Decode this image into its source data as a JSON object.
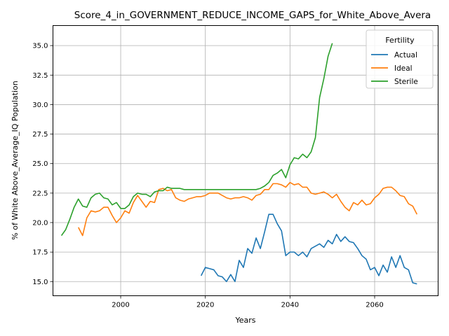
{
  "chart_data": {
    "type": "line",
    "title": "Score_4_in_GOVERNMENT_REDUCE_INCOME_GAPS_for_White_Above_Avera",
    "xlabel": "Years",
    "ylabel": "% of White Above_Average_IQ Population",
    "xlim": [
      1984,
      2075
    ],
    "ylim": [
      13.8,
      36.7
    ],
    "xticks": [
      2000,
      2020,
      2040,
      2060
    ],
    "yticks": [
      15.0,
      17.5,
      20.0,
      22.5,
      25.0,
      27.5,
      30.0,
      32.5,
      35.0
    ],
    "grid": true,
    "legend": {
      "title": "Fertility",
      "placement": "top-right"
    },
    "series": [
      {
        "name": "Actual",
        "color": "#1f77b4",
        "x": [
          2019,
          2020,
          2021,
          2022,
          2023,
          2024,
          2025,
          2026,
          2027,
          2028,
          2029,
          2030,
          2031,
          2032,
          2033,
          2034,
          2035,
          2036,
          2037,
          2038,
          2039,
          2040,
          2041,
          2042,
          2043,
          2044,
          2045,
          2046,
          2047,
          2048,
          2049,
          2050,
          2051,
          2052,
          2053,
          2054,
          2055,
          2056,
          2057,
          2058,
          2059,
          2060,
          2061,
          2062,
          2063,
          2064,
          2065,
          2066,
          2067,
          2068,
          2069,
          2070
        ],
        "y": [
          15.5,
          16.2,
          16.1,
          16.0,
          15.5,
          15.4,
          15.0,
          15.6,
          15.0,
          16.8,
          16.2,
          17.8,
          17.4,
          18.7,
          17.8,
          19.2,
          20.7,
          20.7,
          19.9,
          19.3,
          17.2,
          17.5,
          17.5,
          17.2,
          17.5,
          17.1,
          17.8,
          18.0,
          18.2,
          17.9,
          18.5,
          18.2,
          19.0,
          18.4,
          18.8,
          18.4,
          18.3,
          17.8,
          17.2,
          16.9,
          16.0,
          16.2,
          15.5,
          16.4,
          15.8,
          17.1,
          16.2,
          17.2,
          16.2,
          16.0,
          14.9,
          14.8
        ]
      },
      {
        "name": "Ideal",
        "color": "#ff7f0e",
        "x": [
          1990,
          1991,
          1992,
          1993,
          1994,
          1995,
          1996,
          1997,
          1998,
          1999,
          2000,
          2001,
          2002,
          2003,
          2004,
          2005,
          2006,
          2007,
          2008,
          2009,
          2010,
          2011,
          2012,
          2013,
          2014,
          2015,
          2016,
          2017,
          2018,
          2019,
          2020,
          2021,
          2022,
          2023,
          2024,
          2025,
          2026,
          2027,
          2028,
          2029,
          2030,
          2031,
          2032,
          2033,
          2034,
          2035,
          2036,
          2037,
          2038,
          2039,
          2040,
          2041,
          2042,
          2043,
          2044,
          2045,
          2046,
          2047,
          2048,
          2049,
          2050,
          2051,
          2052,
          2053,
          2054,
          2055,
          2056,
          2057,
          2058,
          2059,
          2060,
          2061,
          2062,
          2063,
          2064,
          2065,
          2066,
          2067,
          2068,
          2069,
          2070
        ],
        "y": [
          19.6,
          18.9,
          20.4,
          21.0,
          20.9,
          21.0,
          21.3,
          21.3,
          20.6,
          20.0,
          20.4,
          21.0,
          20.8,
          21.7,
          22.3,
          21.8,
          21.3,
          21.8,
          21.7,
          22.8,
          22.9,
          22.7,
          22.8,
          22.1,
          21.9,
          21.8,
          22.0,
          22.1,
          22.2,
          22.2,
          22.3,
          22.5,
          22.5,
          22.5,
          22.3,
          22.1,
          22.0,
          22.1,
          22.1,
          22.2,
          22.1,
          21.9,
          22.3,
          22.4,
          22.8,
          22.8,
          23.3,
          23.3,
          23.2,
          23.0,
          23.4,
          23.2,
          23.3,
          23.0,
          23.0,
          22.5,
          22.4,
          22.5,
          22.6,
          22.4,
          22.1,
          22.4,
          21.8,
          21.3,
          21.0,
          21.7,
          21.5,
          21.9,
          21.5,
          21.6,
          22.1,
          22.4,
          22.9,
          23.0,
          23.0,
          22.7,
          22.3,
          22.2,
          21.6,
          21.4,
          20.7
        ]
      },
      {
        "name": "Sterile",
        "color": "#2ca02c",
        "x": [
          1986,
          1987,
          1988,
          1989,
          1990,
          1991,
          1992,
          1993,
          1994,
          1995,
          1996,
          1997,
          1998,
          1999,
          2000,
          2001,
          2002,
          2003,
          2004,
          2005,
          2006,
          2007,
          2008,
          2009,
          2010,
          2011,
          2012,
          2013,
          2014,
          2015,
          2016,
          2017,
          2018,
          2019,
          2020,
          2021,
          2022,
          2023,
          2024,
          2025,
          2026,
          2027,
          2028,
          2029,
          2030,
          2031,
          2032,
          2033,
          2034,
          2035,
          2036,
          2037,
          2038,
          2039,
          2040,
          2041,
          2042,
          2043,
          2044,
          2045,
          2046,
          2047,
          2048,
          2049,
          2050
        ],
        "y": [
          18.9,
          19.4,
          20.3,
          21.3,
          22.0,
          21.4,
          21.3,
          22.1,
          22.4,
          22.5,
          22.1,
          22.0,
          21.5,
          21.7,
          21.2,
          21.2,
          21.5,
          22.2,
          22.5,
          22.4,
          22.4,
          22.2,
          22.6,
          22.7,
          22.7,
          23.0,
          22.9,
          22.9,
          22.9,
          22.8,
          22.8,
          22.8,
          22.8,
          22.8,
          22.8,
          22.8,
          22.8,
          22.8,
          22.8,
          22.8,
          22.8,
          22.8,
          22.8,
          22.8,
          22.8,
          22.8,
          22.8,
          22.9,
          23.1,
          23.4,
          24.0,
          24.2,
          24.5,
          23.8,
          24.9,
          25.5,
          25.4,
          25.8,
          25.5,
          26.0,
          27.2,
          30.6,
          32.2,
          34.1,
          35.2
        ]
      }
    ]
  }
}
